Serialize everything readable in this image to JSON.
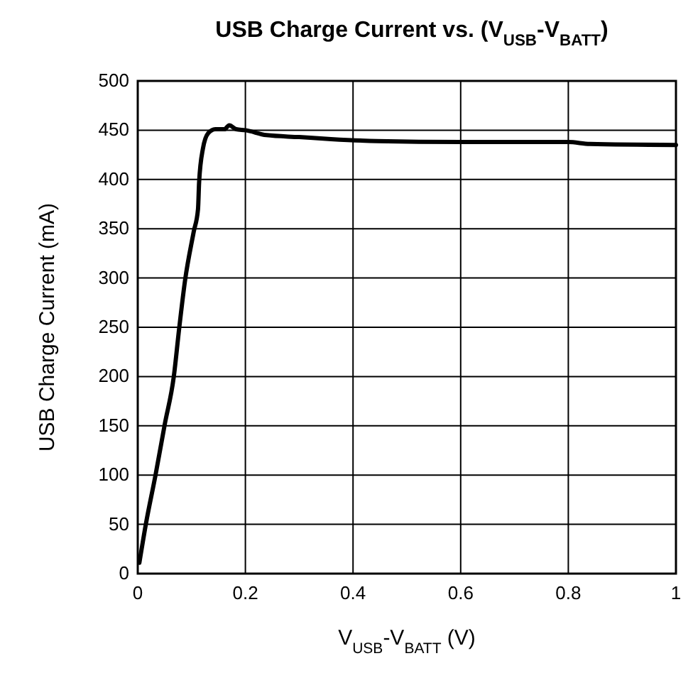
{
  "chart_data": {
    "type": "line",
    "title": "USB Charge Current vs. (V$_{USB}$-V$_{BATT}$)",
    "xlabel": "V$_{USB}$-V$_{BATT}$ (V)",
    "ylabel": "USB Charge Current (mA)",
    "xlim": [
      0,
      1
    ],
    "ylim": [
      0,
      500
    ],
    "xticks": [
      0,
      0.2,
      0.4,
      0.6,
      0.8,
      1
    ],
    "yticks": [
      0,
      50,
      100,
      150,
      200,
      250,
      300,
      350,
      400,
      450,
      500
    ],
    "grid": true,
    "series": [
      {
        "color": "#000000",
        "x": [
          0.003,
          0.015,
          0.033,
          0.05,
          0.067,
          0.077,
          0.088,
          0.104,
          0.112,
          0.114,
          0.121,
          0.131,
          0.144,
          0.161,
          0.17,
          0.183,
          0.2,
          0.239,
          0.3,
          0.359,
          0.445,
          0.6,
          0.8,
          0.84,
          1.0
        ],
        "values": [
          11,
          50,
          100,
          151,
          200,
          249,
          298,
          347,
          370,
          397,
          431,
          447,
          451,
          451,
          455,
          451,
          450,
          445,
          443,
          441,
          439,
          438,
          438,
          436,
          435
        ]
      }
    ]
  }
}
